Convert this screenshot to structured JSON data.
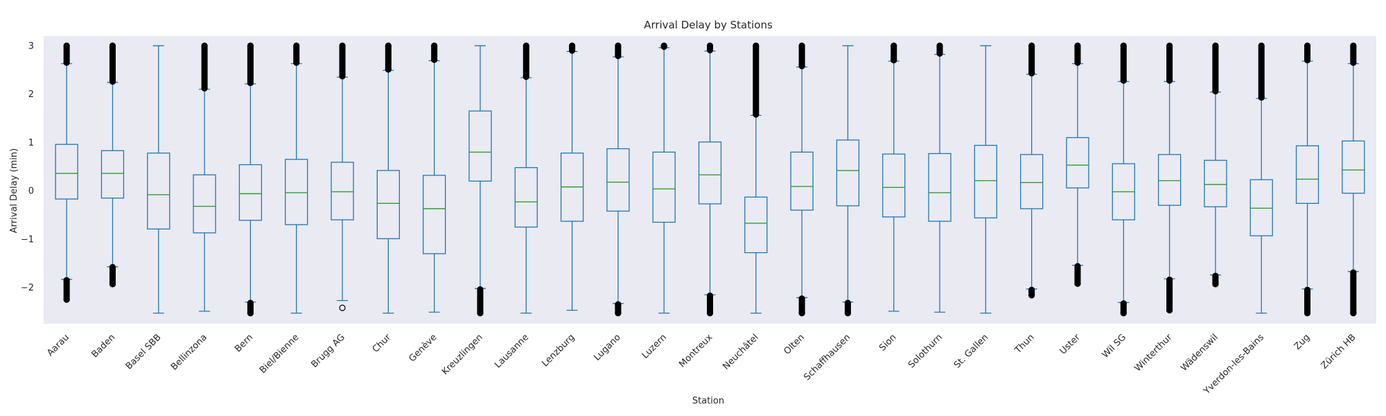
{
  "chart_data": {
    "type": "box",
    "title": "Arrival Delay by Stations",
    "xlabel": "Station",
    "ylabel": "Arrival Delay (min)",
    "ylim": [
      -2.75,
      3.2
    ],
    "yticks": [
      -2,
      -1,
      0,
      1,
      2,
      3
    ],
    "grid": false,
    "colors": {
      "background": "#eaeaf2",
      "box": "#1f77b4",
      "median": "#2ca02c",
      "flier": "#000000"
    },
    "categories": [
      "Aarau",
      "Baden",
      "Basel SBB",
      "Bellinzona",
      "Bern",
      "Biel/Bienne",
      "Brugg AG",
      "Chur",
      "Genève",
      "Kreuzlingen",
      "Lausanne",
      "Lenzburg",
      "Lugano",
      "Luzern",
      "Montreux",
      "Neuchâtel",
      "Olten",
      "Schaffhausen",
      "Sion",
      "Solothurn",
      "St. Gallen",
      "Thun",
      "Uster",
      "Wil SG",
      "Winterthur",
      "Wädenswil",
      "Yverdon-les-Bains",
      "Zug",
      "Zürich HB"
    ],
    "boxes": [
      {
        "whislo": -1.83,
        "q1": -0.17,
        "med": 0.36,
        "q3": 0.96,
        "whishi": 2.63,
        "fliers_low": [
          -2.25,
          -1.85
        ],
        "fliers_high": [
          2.65,
          3.0
        ]
      },
      {
        "whislo": -1.57,
        "q1": -0.15,
        "med": 0.36,
        "q3": 0.83,
        "whishi": 2.24,
        "fliers_low": [
          -1.93,
          -1.58
        ],
        "fliers_high": [
          2.26,
          3.0
        ]
      },
      {
        "whislo": -2.53,
        "q1": -0.79,
        "med": -0.08,
        "q3": 0.78,
        "whishi": 3.0,
        "fliers_low": [],
        "fliers_high": []
      },
      {
        "whislo": -2.49,
        "q1": -0.87,
        "med": -0.32,
        "q3": 0.33,
        "whishi": 2.1,
        "fliers_low": [],
        "fliers_high": [
          2.12,
          3.0
        ]
      },
      {
        "whislo": -2.3,
        "q1": -0.61,
        "med": -0.06,
        "q3": 0.54,
        "whishi": 2.21,
        "fliers_low": [
          -2.53,
          -2.32
        ],
        "fliers_high": [
          2.23,
          3.0
        ]
      },
      {
        "whislo": -2.53,
        "q1": -0.7,
        "med": -0.04,
        "q3": 0.65,
        "whishi": 2.63,
        "fliers_low": [],
        "fliers_high": [
          2.65,
          3.0
        ]
      },
      {
        "whislo": -2.27,
        "q1": -0.6,
        "med": -0.02,
        "q3": 0.59,
        "whishi": 2.35,
        "fliers_low": [
          -2.42
        ],
        "fliers_high": [
          2.37,
          3.0
        ]
      },
      {
        "whislo": -2.53,
        "q1": -0.99,
        "med": -0.26,
        "q3": 0.42,
        "whishi": 2.49,
        "fliers_low": [],
        "fliers_high": [
          2.51,
          3.0
        ]
      },
      {
        "whislo": -2.51,
        "q1": -1.3,
        "med": -0.37,
        "q3": 0.32,
        "whishi": 2.69,
        "fliers_low": [],
        "fliers_high": [
          2.71,
          3.0
        ]
      },
      {
        "whislo": -2.02,
        "q1": 0.2,
        "med": 0.8,
        "q3": 1.65,
        "whishi": 3.0,
        "fliers_low": [
          -2.53,
          -2.04
        ],
        "fliers_high": []
      },
      {
        "whislo": -2.53,
        "q1": -0.75,
        "med": -0.23,
        "q3": 0.48,
        "whishi": 2.34,
        "fliers_low": [],
        "fliers_high": [
          2.36,
          3.0
        ]
      },
      {
        "whislo": -2.47,
        "q1": -0.63,
        "med": 0.08,
        "q3": 0.78,
        "whishi": 2.88,
        "fliers_low": [],
        "fliers_high": [
          2.9,
          3.0
        ]
      },
      {
        "whislo": -2.33,
        "q1": -0.42,
        "med": 0.18,
        "q3": 0.87,
        "whishi": 2.77,
        "fliers_low": [
          -2.53,
          -2.35
        ],
        "fliers_high": [
          2.79,
          3.0
        ]
      },
      {
        "whislo": -2.53,
        "q1": -0.65,
        "med": 0.04,
        "q3": 0.8,
        "whishi": 2.96,
        "fliers_low": [],
        "fliers_high": [
          2.98,
          3.0
        ]
      },
      {
        "whislo": -2.15,
        "q1": -0.27,
        "med": 0.33,
        "q3": 1.01,
        "whishi": 2.89,
        "fliers_low": [
          -2.53,
          -2.17
        ],
        "fliers_high": [
          2.91,
          3.0
        ]
      },
      {
        "whislo": -2.53,
        "q1": -1.28,
        "med": -0.67,
        "q3": -0.13,
        "whishi": 1.56,
        "fliers_low": [],
        "fliers_high": [
          1.58,
          3.0
        ]
      },
      {
        "whislo": -2.21,
        "q1": -0.4,
        "med": 0.09,
        "q3": 0.8,
        "whishi": 2.56,
        "fliers_low": [
          -2.53,
          -2.23
        ],
        "fliers_high": [
          2.58,
          3.0
        ]
      },
      {
        "whislo": -2.3,
        "q1": -0.31,
        "med": 0.42,
        "q3": 1.05,
        "whishi": 3.0,
        "fliers_low": [
          -2.53,
          -2.32
        ],
        "fliers_high": []
      },
      {
        "whislo": -2.49,
        "q1": -0.54,
        "med": 0.07,
        "q3": 0.76,
        "whishi": 2.68,
        "fliers_low": [],
        "fliers_high": [
          2.7,
          3.0
        ]
      },
      {
        "whislo": -2.51,
        "q1": -0.63,
        "med": -0.04,
        "q3": 0.77,
        "whishi": 2.82,
        "fliers_low": [],
        "fliers_high": [
          2.84,
          3.0
        ]
      },
      {
        "whislo": -2.53,
        "q1": -0.56,
        "med": 0.21,
        "q3": 0.94,
        "whishi": 3.0,
        "fliers_low": [],
        "fliers_high": []
      },
      {
        "whislo": -2.03,
        "q1": -0.37,
        "med": 0.17,
        "q3": 0.75,
        "whishi": 2.41,
        "fliers_low": [
          -2.16,
          -2.05
        ],
        "fliers_high": [
          2.43,
          3.0
        ]
      },
      {
        "whislo": -1.54,
        "q1": 0.06,
        "med": 0.53,
        "q3": 1.1,
        "whishi": 2.63,
        "fliers_low": [
          -1.92,
          -1.56
        ],
        "fliers_high": [
          2.65,
          3.0
        ]
      },
      {
        "whislo": -2.31,
        "q1": -0.6,
        "med": -0.02,
        "q3": 0.56,
        "whishi": 2.26,
        "fliers_low": [
          -2.53,
          -2.33
        ],
        "fliers_high": [
          2.28,
          3.0
        ]
      },
      {
        "whislo": -1.82,
        "q1": -0.3,
        "med": 0.21,
        "q3": 0.75,
        "whishi": 2.26,
        "fliers_low": [
          -2.47,
          -1.84
        ],
        "fliers_high": [
          2.28,
          3.0
        ]
      },
      {
        "whislo": -1.74,
        "q1": -0.33,
        "med": 0.13,
        "q3": 0.63,
        "whishi": 2.04,
        "fliers_low": [
          -1.93,
          -1.76
        ],
        "fliers_high": [
          2.06,
          3.0
        ]
      },
      {
        "whislo": -2.53,
        "q1": -0.93,
        "med": -0.36,
        "q3": 0.23,
        "whishi": 1.91,
        "fliers_low": [],
        "fliers_high": [
          1.93,
          3.0
        ]
      },
      {
        "whislo": -2.03,
        "q1": -0.26,
        "med": 0.24,
        "q3": 0.93,
        "whishi": 2.68,
        "fliers_low": [
          -2.53,
          -2.05
        ],
        "fliers_high": [
          2.7,
          3.0
        ]
      },
      {
        "whislo": -1.67,
        "q1": -0.05,
        "med": 0.43,
        "q3": 1.03,
        "whishi": 2.63,
        "fliers_low": [
          -2.53,
          -1.69
        ],
        "fliers_high": [
          2.65,
          3.0
        ]
      }
    ]
  }
}
